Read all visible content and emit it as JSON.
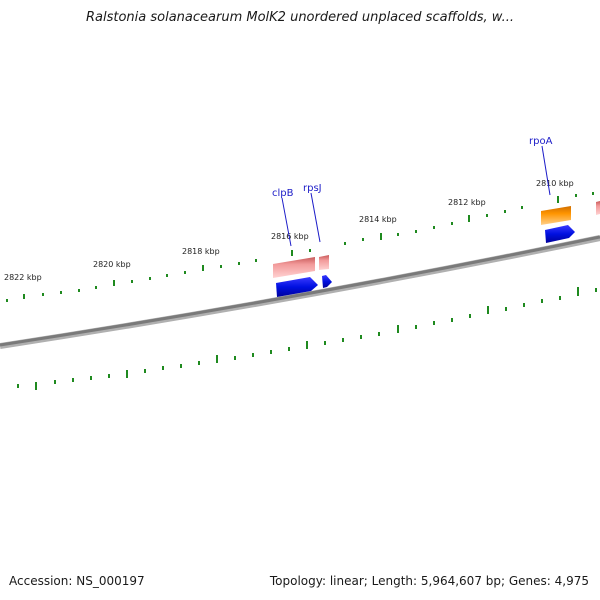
{
  "title": "Ralstonia solanacearum MolK2 unordered unplaced scaffolds, w...",
  "footer": {
    "accession": "Accession: NS_000197",
    "summary": "Topology: linear; Length: 5,964,607 bp; Genes: 4,975"
  },
  "map": {
    "tick_labels": [
      "2810 kbp",
      "2812 kbp",
      "2814 kbp",
      "2816 kbp",
      "2818 kbp",
      "2820 kbp",
      "2822 kbp"
    ],
    "gene_labels": [
      "rpoA",
      "rpsJ",
      "clpB"
    ]
  },
  "colors": {
    "backbone": "#808080",
    "tick": "#1f8a1f",
    "gene_label": "#1c1cc8",
    "forward_feature": "#f08e8e",
    "forward_feature_alt": "#f28c00",
    "reverse_feature": "#0a14e6"
  }
}
